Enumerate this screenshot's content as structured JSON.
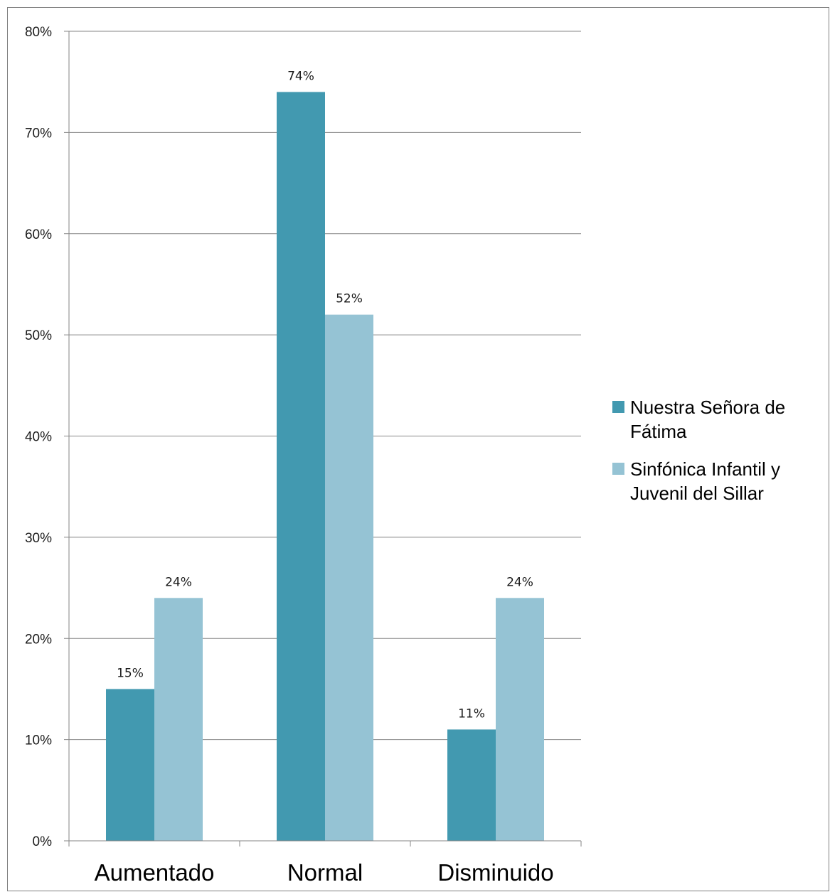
{
  "chart_data": {
    "type": "bar",
    "title": "",
    "xlabel": "",
    "ylabel": "",
    "categories": [
      "Aumentado",
      "Normal",
      "Disminuido"
    ],
    "series": [
      {
        "name": "Nuestra Señora de Fátima",
        "values": [
          15,
          74,
          11
        ],
        "labels": [
          "15%",
          "74%",
          "11%"
        ],
        "color": "#4299b0"
      },
      {
        "name": "Sinfónica Infantil y Juvenil del Sillar",
        "values": [
          24,
          52,
          24
        ],
        "labels": [
          "24%",
          "52%",
          "24%"
        ],
        "color": "#95c3d4"
      }
    ],
    "ylim": [
      0,
      80
    ],
    "yticks": [
      "0%",
      "10%",
      "20%",
      "30%",
      "40%",
      "50%",
      "60%",
      "70%",
      "80%"
    ],
    "grid": true,
    "legend": "right",
    "legend_lines": [
      [
        "Nuestra Señora de",
        "Fátima"
      ],
      [
        "Sinfónica Infantil y",
        "Juvenil del Sillar"
      ]
    ]
  }
}
